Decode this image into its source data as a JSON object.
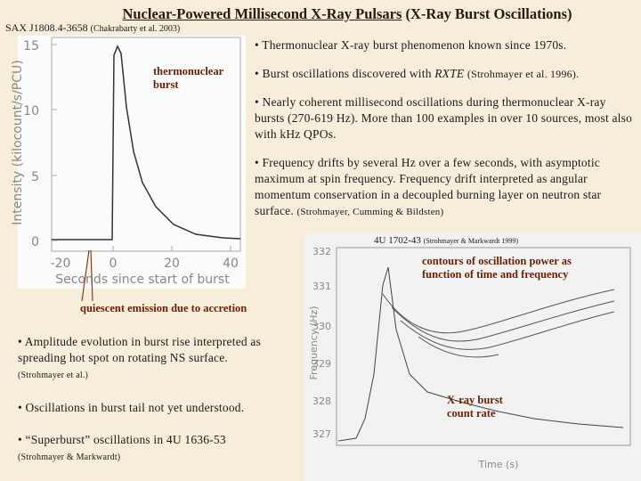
{
  "header": {
    "title": "Nuclear-Powered Millisecond X-Ray Pulsars",
    "title_suffix": "(X-Ray Burst Oscillations)",
    "source": "SAX J1808.4-3658",
    "source_ref": "(Chakrabarty et al. 2003)"
  },
  "plot_left": {
    "ylabel": "Intensity (kilocount/s/PCU)",
    "xlabel": "Seconds since start of burst",
    "yticks": [
      "0",
      "5",
      "10",
      "15"
    ],
    "xticks": [
      "-20",
      "0",
      "20",
      "40"
    ],
    "annotation": "thermonuclear burst"
  },
  "plot_right": {
    "label": "4U 1702-43",
    "label_ref": "(Strohmayer & Markwardt 1999)",
    "ylabel": "Frequency (Hz)",
    "xlabel": "Time (s)",
    "yticks": [
      "327",
      "328",
      "329",
      "330",
      "331",
      "332"
    ],
    "annotation_contours": "contours of oscillation power as function of time and frequency",
    "annotation_rate": "X-ray burst count rate"
  },
  "annotation_quiescent": "quiescent emission due to accretion",
  "bullets_right": [
    {
      "text": "• Thermonuclear X-ray burst phenomenon known since 1970s."
    },
    {
      "text": "• Burst oscillations discovered with",
      "emphasis": "RXTE",
      "ref": "(Strohmayer et al. 1996)."
    },
    {
      "text": "• Nearly coherent millisecond oscillations during thermonuclear X-ray bursts (270-619 Hz).  More than 100 examples in over 10 sources, most also with kHz QPOs."
    },
    {
      "text": "• Frequency drifts by several Hz over a few seconds, with asymptotic maximum at spin frequency. Frequency drift interpreted as angular momentum conservation in a decoupled burning layer on neutron star surface.",
      "ref": "(Strohmayer, Cumming & Bildsten)"
    }
  ],
  "bullets_left": [
    {
      "text": "• Amplitude evolution in burst rise interpreted as spreading hot spot on rotating NS surface.",
      "ref": "(Strohmayer et al.)"
    },
    {
      "text": "• Oscillations in burst tail not yet understood."
    },
    {
      "text": "• “Superburst” oscillations in 4U 1636-53",
      "ref": "(Strohmayer & Markwardt)"
    }
  ]
}
